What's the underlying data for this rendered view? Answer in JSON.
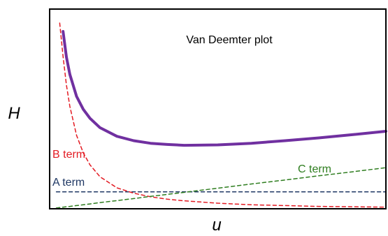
{
  "chart_data": {
    "type": "line",
    "title": "Van Deemter plot",
    "xlabel": "u",
    "ylabel": "H",
    "xlim": [
      0,
      10
    ],
    "ylim": [
      0,
      10
    ],
    "grid": false,
    "legend": "none",
    "x": [
      0.2,
      0.3,
      0.4,
      0.5,
      0.6,
      0.8,
      1,
      1.2,
      1.5,
      2,
      2.5,
      3,
      3.5,
      4,
      5,
      6,
      7,
      8,
      9,
      10
    ],
    "series": [
      {
        "name": "",
        "role": "total",
        "color": "#7030a0",
        "style": "solid",
        "values": [
          null,
          null,
          8.88,
          7.6,
          6.73,
          5.63,
          4.98,
          4.53,
          4.06,
          3.63,
          3.41,
          3.28,
          3.22,
          3.18,
          3.2,
          3.28,
          3.41,
          3.55,
          3.71,
          3.88
        ]
      },
      {
        "name": "A term",
        "role": "A",
        "color": "#1f3864",
        "style": "dashed",
        "values": [
          0.85,
          0.85,
          0.85,
          0.85,
          0.85,
          0.85,
          0.85,
          0.85,
          0.85,
          0.85,
          0.85,
          0.85,
          0.85,
          0.85,
          0.85,
          0.85,
          0.85,
          0.85,
          0.85,
          0.85
        ]
      },
      {
        "name": "B term",
        "role": "B",
        "color": "#e31b23",
        "style": "dashed",
        "values": [
          null,
          9.3,
          7.63,
          6.2,
          5.13,
          3.68,
          2.8,
          2.2,
          1.6,
          1.05,
          0.78,
          0.6,
          0.48,
          0.4,
          0.28,
          0.2,
          0.16,
          0.12,
          0.1,
          0.08
        ]
      },
      {
        "name": "C term",
        "role": "C",
        "color": "#2e7d1f",
        "style": "dashed",
        "values": [
          0.04,
          0.06,
          0.08,
          0.1,
          0.12,
          0.16,
          0.2,
          0.24,
          0.31,
          0.41,
          0.51,
          0.62,
          0.72,
          0.82,
          1.03,
          1.24,
          1.44,
          1.65,
          1.85,
          2.06
        ]
      }
    ]
  }
}
